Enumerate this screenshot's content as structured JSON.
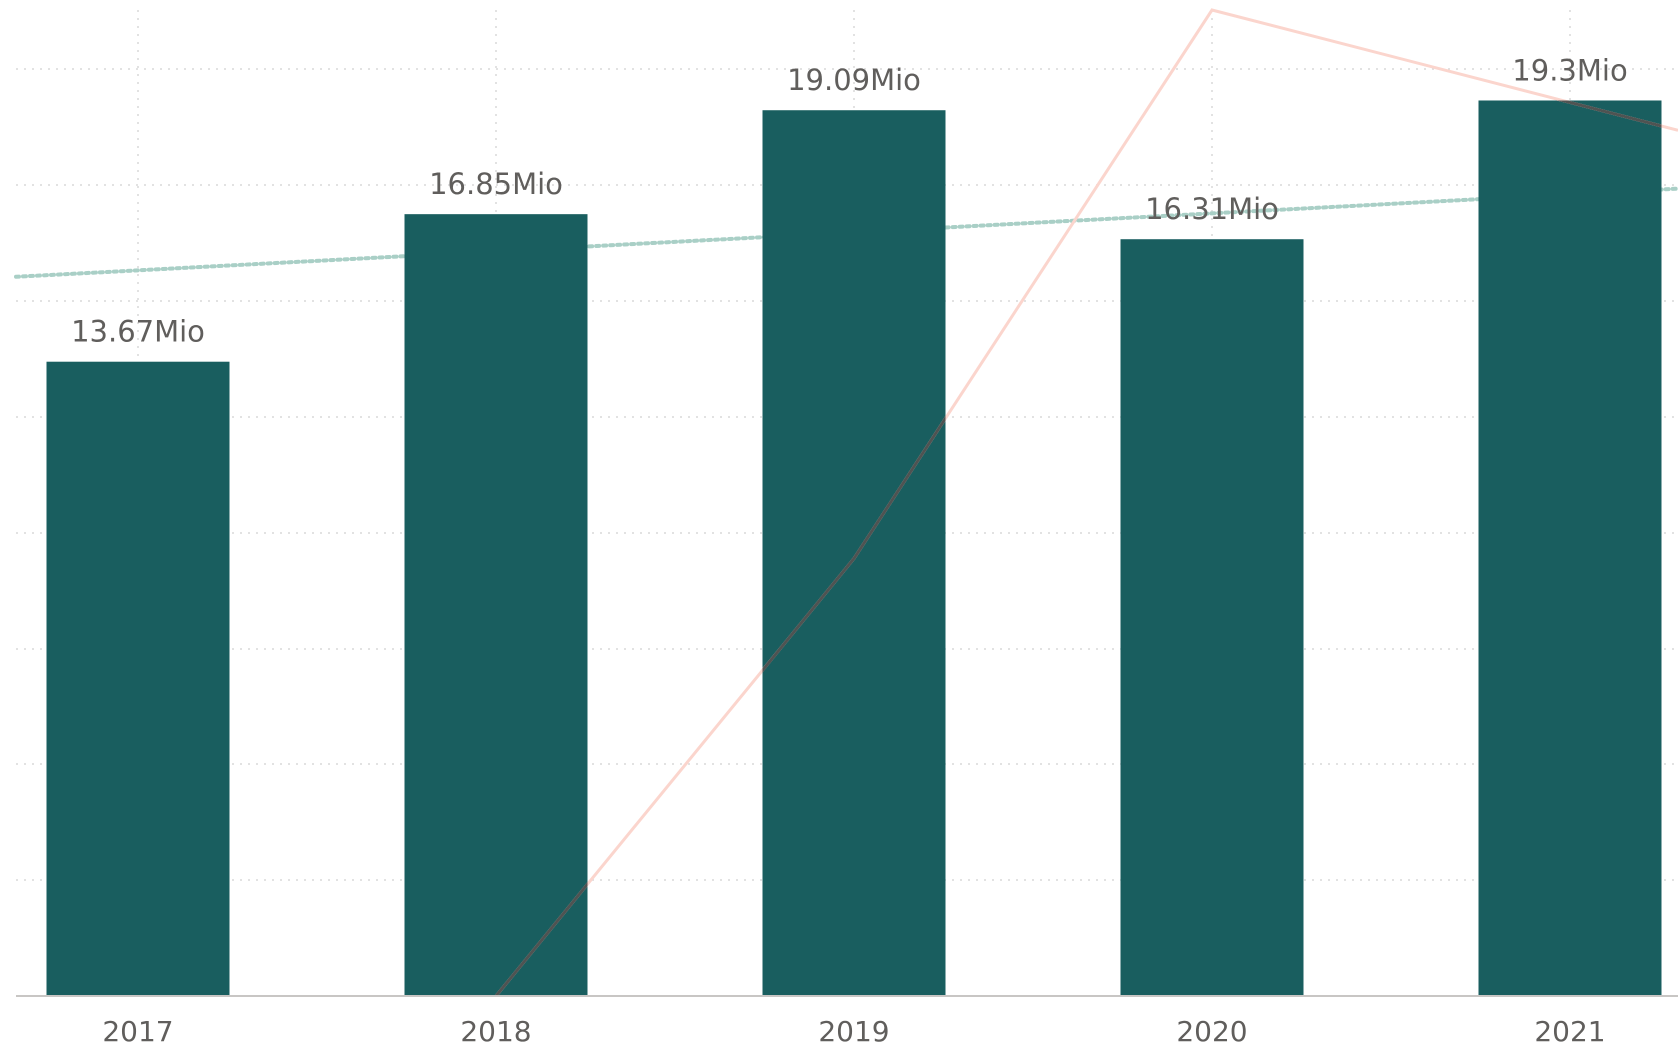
{
  "chart_data": {
    "type": "bar",
    "categories": [
      "2017",
      "2018",
      "2019",
      "2020",
      "2021"
    ],
    "values": [
      13.67,
      16.85,
      19.09,
      16.31,
      19.3
    ],
    "data_labels": [
      "13.67Mio",
      "16.85Mio",
      "19.09Mio",
      "16.31Mio",
      "19.3Mio"
    ],
    "unit": "Mio",
    "ylim": [
      0,
      20.8
    ],
    "grid": true,
    "grid_style": "dotted",
    "trend_line": {
      "style": "dotted",
      "start_value": 15.5,
      "end_value": 17.4
    },
    "overlay_line": {
      "values": [
        null,
        0,
        71,
        160,
        145
      ],
      "ylim": [
        0,
        160
      ]
    },
    "colors": {
      "bar": "#195e5f",
      "grid": "#d9d9d9",
      "trend": "#a9cfc6",
      "overlay_light": "#fbd5cd",
      "overlay_dark": "#4f5352",
      "text": "#605e5c",
      "axis": "#c8c6c4"
    }
  }
}
